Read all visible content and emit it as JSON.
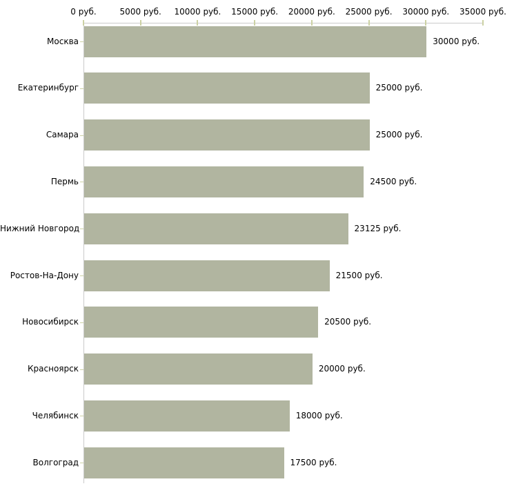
{
  "chart_data": {
    "type": "bar",
    "orientation": "horizontal",
    "title": "",
    "xlabel": "",
    "ylabel": "",
    "unit": "руб.",
    "categories": [
      "Москва",
      "Екатеринбург",
      "Самара",
      "Пермь",
      "Нижний Новгород",
      "Ростов-На-Дону",
      "Новосибирск",
      "Красноярск",
      "Челябинск",
      "Волгоград"
    ],
    "values": [
      30000,
      25000,
      25000,
      24500,
      23125,
      21500,
      20500,
      20000,
      18000,
      17500
    ],
    "value_labels": [
      "30000 руб.",
      "25000 руб.",
      "25000 руб.",
      "24500 руб.",
      "23125 руб.",
      "21500 руб.",
      "20500 руб.",
      "20000 руб.",
      "18000 руб.",
      "17500 руб."
    ],
    "x_ticks": [
      0,
      5000,
      10000,
      15000,
      20000,
      25000,
      30000,
      35000
    ],
    "x_tick_labels": [
      "0 руб.",
      "5000 руб.",
      "10000 руб.",
      "15000 руб.",
      "20000 руб.",
      "25000 руб.",
      "30000 руб.",
      "35000 руб."
    ],
    "xlim": [
      0,
      35000
    ],
    "axis_position": "top",
    "grid": false,
    "legend_position": "none",
    "colors": {
      "bar": "#b1b5a0",
      "axis_line": "#c9c9c9",
      "tick_mark": "#ccd1a4",
      "text": "#000000",
      "background": "#ffffff"
    }
  }
}
